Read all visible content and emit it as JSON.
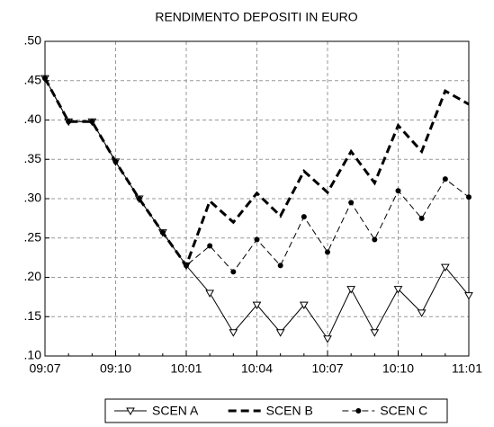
{
  "chart_data": {
    "type": "line",
    "title": "RENDIMENTO DEPOSITI IN EURO",
    "categories": [
      "09:07",
      null,
      null,
      "09:10",
      null,
      null,
      "10:01",
      null,
      null,
      "10:04",
      null,
      null,
      "10:07",
      null,
      null,
      "10:10",
      null,
      null,
      "11:01"
    ],
    "series": [
      {
        "name": "SCEN A",
        "color": "#000000",
        "dash": false,
        "width": 1,
        "marker": "triangle-down",
        "values": [
          0.453,
          0.398,
          0.398,
          0.347,
          0.3,
          0.257,
          0.215,
          0.18,
          0.13,
          0.165,
          0.13,
          0.165,
          0.122,
          0.185,
          0.13,
          0.185,
          0.155,
          0.213,
          0.177
        ]
      },
      {
        "name": "SCEN B",
        "color": "#000000",
        "dash": true,
        "width": 3,
        "marker": "none",
        "values": [
          0.453,
          0.398,
          0.398,
          0.347,
          0.3,
          0.257,
          0.215,
          0.297,
          0.27,
          0.307,
          0.278,
          0.335,
          0.308,
          0.36,
          0.32,
          0.393,
          0.36,
          0.437,
          0.42
        ]
      },
      {
        "name": "SCEN C",
        "color": "#000000",
        "dash": true,
        "width": 1,
        "marker": "dot",
        "values": [
          0.453,
          0.398,
          0.398,
          0.347,
          0.3,
          0.257,
          0.215,
          0.24,
          0.207,
          0.248,
          0.215,
          0.277,
          0.232,
          0.295,
          0.248,
          0.31,
          0.275,
          0.325,
          0.302
        ]
      }
    ],
    "ylim": [
      0.1,
      0.5
    ],
    "yticks": [
      {
        "value": 0.1,
        "label": ".10"
      },
      {
        "value": 0.15,
        "label": ".15"
      },
      {
        "value": 0.2,
        "label": ".20"
      },
      {
        "value": 0.25,
        "label": ".25"
      },
      {
        "value": 0.3,
        "label": ".30"
      },
      {
        "value": 0.35,
        "label": ".35"
      },
      {
        "value": 0.4,
        "label": ".40"
      },
      {
        "value": 0.45,
        "label": ".45"
      },
      {
        "value": 0.5,
        "label": ".50"
      }
    ],
    "grid": true,
    "legend": "bottom"
  }
}
